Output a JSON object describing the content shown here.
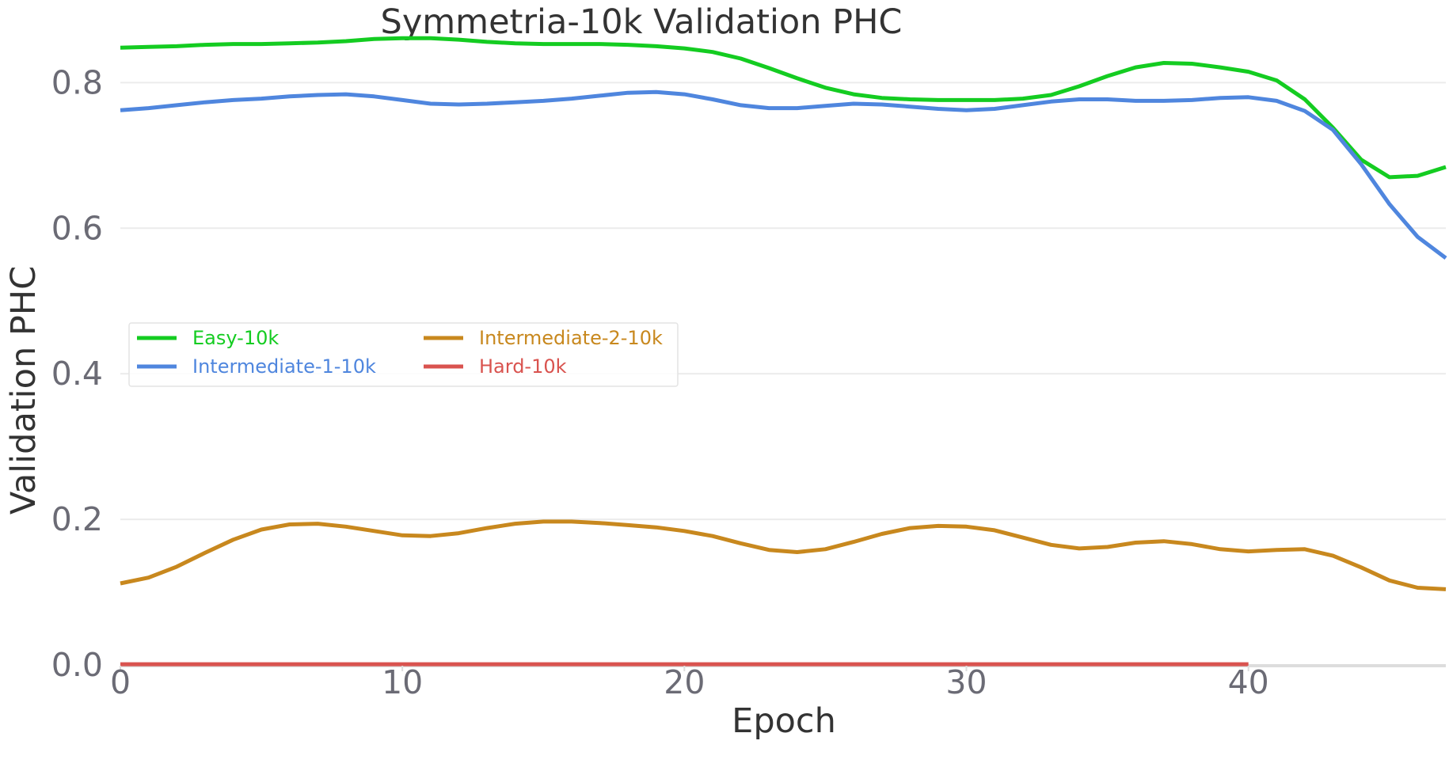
{
  "chart_data": {
    "type": "line",
    "title": "Symmetria-10k Validation PHC",
    "xlabel": "Epoch",
    "ylabel": "Validation PHC",
    "xlim": [
      0,
      47
    ],
    "ylim": [
      0,
      0.87
    ],
    "xticks": [
      0,
      10,
      20,
      30,
      40
    ],
    "yticks": [
      0.0,
      0.2,
      0.4,
      0.6,
      0.8
    ],
    "xtick_labels": [
      "0",
      "10",
      "20",
      "30",
      "40"
    ],
    "ytick_labels": [
      "0.0",
      "0.2",
      "0.4",
      "0.6",
      "0.8"
    ],
    "grid": "horizontal",
    "legend_position": "center-left",
    "series": [
      {
        "name": "Easy-10k",
        "color": "#14cc21",
        "x": [
          0,
          1,
          2,
          3,
          4,
          5,
          6,
          7,
          8,
          9,
          10,
          11,
          12,
          13,
          14,
          15,
          16,
          17,
          18,
          19,
          20,
          21,
          22,
          23,
          24,
          25,
          26,
          27,
          28,
          29,
          30,
          31,
          32,
          33,
          34,
          35,
          36,
          37,
          38,
          39,
          40,
          41,
          42,
          43,
          44,
          45,
          46,
          47
        ],
        "values": [
          0.848,
          0.849,
          0.85,
          0.852,
          0.853,
          0.853,
          0.854,
          0.855,
          0.857,
          0.86,
          0.861,
          0.861,
          0.859,
          0.856,
          0.854,
          0.853,
          0.853,
          0.853,
          0.852,
          0.85,
          0.847,
          0.842,
          0.833,
          0.82,
          0.806,
          0.793,
          0.784,
          0.779,
          0.777,
          0.776,
          0.776,
          0.776,
          0.778,
          0.783,
          0.795,
          0.809,
          0.821,
          0.827,
          0.826,
          0.821,
          0.815,
          0.803,
          0.777,
          0.738,
          0.694,
          0.67,
          0.672,
          0.684
        ]
      },
      {
        "name": "Intermediate-1-10k",
        "color": "#4f86de",
        "x": [
          0,
          1,
          2,
          3,
          4,
          5,
          6,
          7,
          8,
          9,
          10,
          11,
          12,
          13,
          14,
          15,
          16,
          17,
          18,
          19,
          20,
          21,
          22,
          23,
          24,
          25,
          26,
          27,
          28,
          29,
          30,
          31,
          32,
          33,
          34,
          35,
          36,
          37,
          38,
          39,
          40,
          41,
          42,
          43,
          44,
          45,
          46,
          47
        ],
        "values": [
          0.762,
          0.765,
          0.769,
          0.773,
          0.776,
          0.778,
          0.781,
          0.783,
          0.784,
          0.781,
          0.776,
          0.771,
          0.77,
          0.771,
          0.773,
          0.775,
          0.778,
          0.782,
          0.786,
          0.787,
          0.784,
          0.777,
          0.769,
          0.765,
          0.765,
          0.768,
          0.771,
          0.77,
          0.767,
          0.764,
          0.762,
          0.764,
          0.769,
          0.774,
          0.777,
          0.777,
          0.775,
          0.775,
          0.776,
          0.779,
          0.78,
          0.775,
          0.761,
          0.735,
          0.688,
          0.633,
          0.588,
          0.559
        ]
      },
      {
        "name": "Intermediate-2-10k",
        "color": "#c8881e",
        "x": [
          0,
          1,
          2,
          3,
          4,
          5,
          6,
          7,
          8,
          9,
          10,
          11,
          12,
          13,
          14,
          15,
          16,
          17,
          18,
          19,
          20,
          21,
          22,
          23,
          24,
          25,
          26,
          27,
          28,
          29,
          30,
          31,
          32,
          33,
          34,
          35,
          36,
          37,
          38,
          39,
          40,
          41,
          42,
          43,
          44,
          45,
          46,
          47
        ],
        "values": [
          0.112,
          0.12,
          0.135,
          0.154,
          0.172,
          0.186,
          0.193,
          0.194,
          0.19,
          0.184,
          0.178,
          0.177,
          0.181,
          0.188,
          0.194,
          0.197,
          0.197,
          0.195,
          0.192,
          0.189,
          0.184,
          0.177,
          0.167,
          0.158,
          0.155,
          0.159,
          0.169,
          0.18,
          0.188,
          0.191,
          0.19,
          0.185,
          0.175,
          0.165,
          0.16,
          0.162,
          0.168,
          0.17,
          0.166,
          0.159,
          0.156,
          0.158,
          0.159,
          0.15,
          0.134,
          0.116,
          0.106,
          0.104
        ]
      },
      {
        "name": "Hard-10k",
        "color": "#d9534f",
        "x": [
          0,
          1,
          2,
          3,
          4,
          5,
          6,
          7,
          8,
          9,
          10,
          11,
          12,
          13,
          14,
          15,
          16,
          17,
          18,
          19,
          20,
          21,
          22,
          23,
          24,
          25,
          26,
          27,
          28,
          29,
          30,
          31,
          32,
          33,
          34,
          35,
          36,
          37,
          38,
          39,
          40
        ],
        "values": [
          0.001,
          0.001,
          0.001,
          0.001,
          0.001,
          0.001,
          0.001,
          0.001,
          0.001,
          0.001,
          0.001,
          0.001,
          0.001,
          0.001,
          0.001,
          0.001,
          0.001,
          0.001,
          0.001,
          0.001,
          0.001,
          0.001,
          0.001,
          0.001,
          0.001,
          0.001,
          0.001,
          0.001,
          0.001,
          0.001,
          0.001,
          0.001,
          0.001,
          0.001,
          0.001,
          0.001,
          0.001,
          0.001,
          0.001,
          0.001,
          0.001
        ]
      }
    ]
  }
}
